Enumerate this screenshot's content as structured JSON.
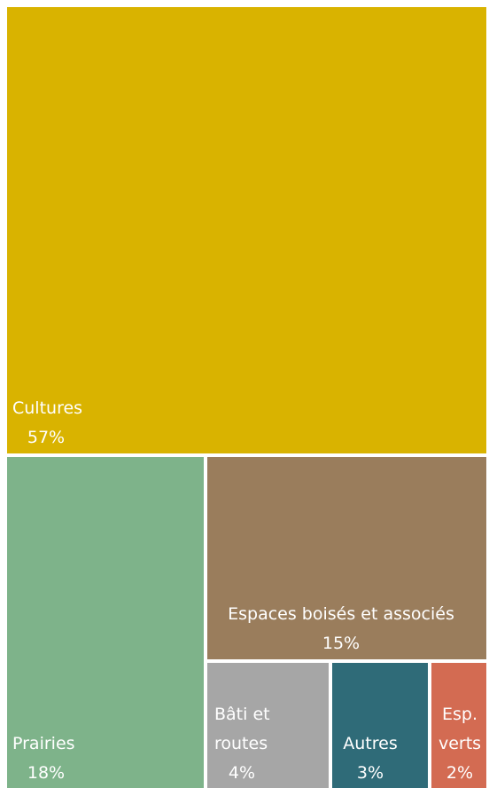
{
  "chart_data": {
    "type": "treemap",
    "title": "",
    "tiles": [
      {
        "name": "Cultures",
        "lines": [
          "Cultures"
        ],
        "value_label": "57%",
        "value": 57,
        "color": "#D9B300"
      },
      {
        "name": "Prairies",
        "lines": [
          "Prairies"
        ],
        "value_label": "18%",
        "value": 18,
        "color": "#7EB38A"
      },
      {
        "name": "Espaces boisés et associés",
        "lines": [
          "Espaces boisés et associés"
        ],
        "value_label": "15%",
        "value": 15,
        "color": "#9A7D5C"
      },
      {
        "name": "Bâti et routes",
        "lines": [
          "Bâti et",
          "routes"
        ],
        "value_label": "4%",
        "value": 4,
        "color": "#A6A6A6"
      },
      {
        "name": "Autres",
        "lines": [
          "Autres"
        ],
        "value_label": "3%",
        "value": 3,
        "color": "#2F6B78"
      },
      {
        "name": "Esp. verts",
        "lines": [
          "Esp.",
          "verts"
        ],
        "value_label": "2%",
        "value": 2,
        "color": "#D36B52"
      }
    ]
  }
}
